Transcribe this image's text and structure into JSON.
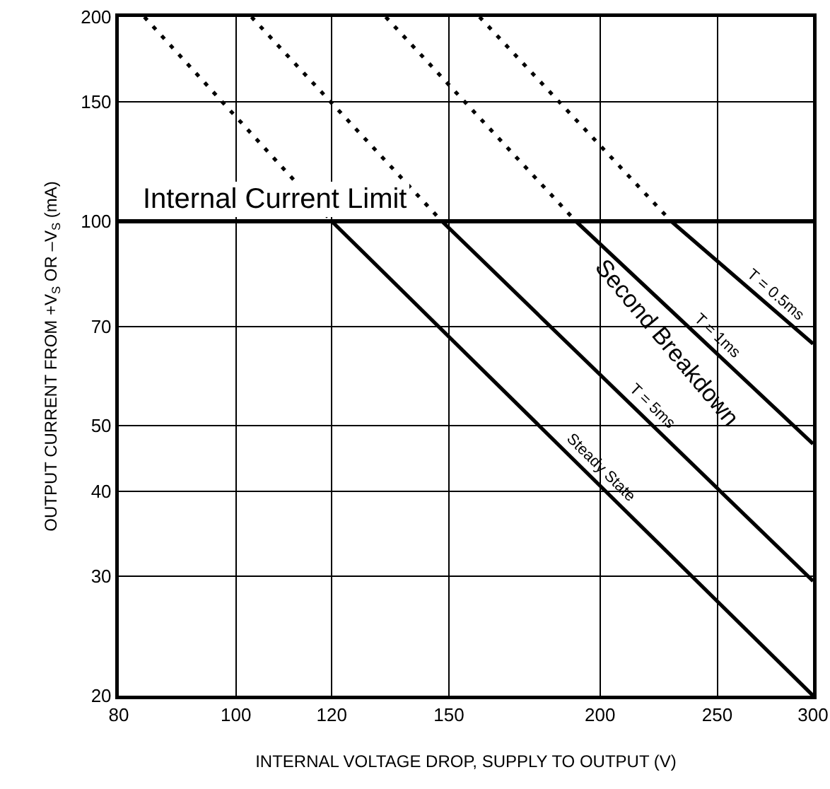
{
  "chart_data": {
    "type": "line",
    "xlabel": "INTERNAL VOLTAGE DROP, SUPPLY TO OUTPUT (V)",
    "ylabel": "OUTPUT CURRENT FROM +V$_{S}$ OR –V$_{S}$ (mA)",
    "log": "xy",
    "xlim": [
      80,
      300
    ],
    "ylim": [
      20,
      200
    ],
    "xticks": [
      80,
      100,
      120,
      150,
      200,
      250,
      300
    ],
    "yticks": [
      20,
      30,
      40,
      50,
      70,
      100,
      150,
      200
    ],
    "grid": true,
    "legend": false,
    "marker": "none",
    "series": [
      {
        "name": "Steady State",
        "color": "#000000",
        "x": [
          120,
          300
        ],
        "values": [
          100,
          20
        ],
        "line_style": "solid"
      },
      {
        "name": "T = 5ms",
        "color": "#000000",
        "x": [
          148,
          300
        ],
        "values": [
          100,
          29.5
        ],
        "line_style": "solid"
      },
      {
        "name": "T = 1ms",
        "color": "#000000",
        "x": [
          191,
          300
        ],
        "values": [
          100,
          47
        ],
        "line_style": "solid"
      },
      {
        "name": "T = 0.5ms",
        "color": "#000000",
        "x": [
          229,
          300
        ],
        "values": [
          100,
          66
        ],
        "line_style": "solid"
      },
      {
        "color": "#000000",
        "x": [
          84,
          120
        ],
        "values": [
          200,
          100
        ],
        "line_style": "dashed"
      },
      {
        "color": "#000000",
        "x": [
          103,
          148
        ],
        "values": [
          200,
          100
        ],
        "line_style": "dashed"
      },
      {
        "color": "#000000",
        "x": [
          133,
          191
        ],
        "values": [
          200,
          100
        ],
        "line_style": "dashed"
      },
      {
        "color": "#000000",
        "x": [
          159,
          229
        ],
        "values": [
          200,
          100
        ],
        "line_style": "dashed"
      }
    ],
    "ref_lines": [
      {
        "axis": "y",
        "value": 100,
        "label": "Internal Current Limit",
        "color": "#000000"
      }
    ],
    "annotations": [
      "Second Breakdown"
    ]
  }
}
